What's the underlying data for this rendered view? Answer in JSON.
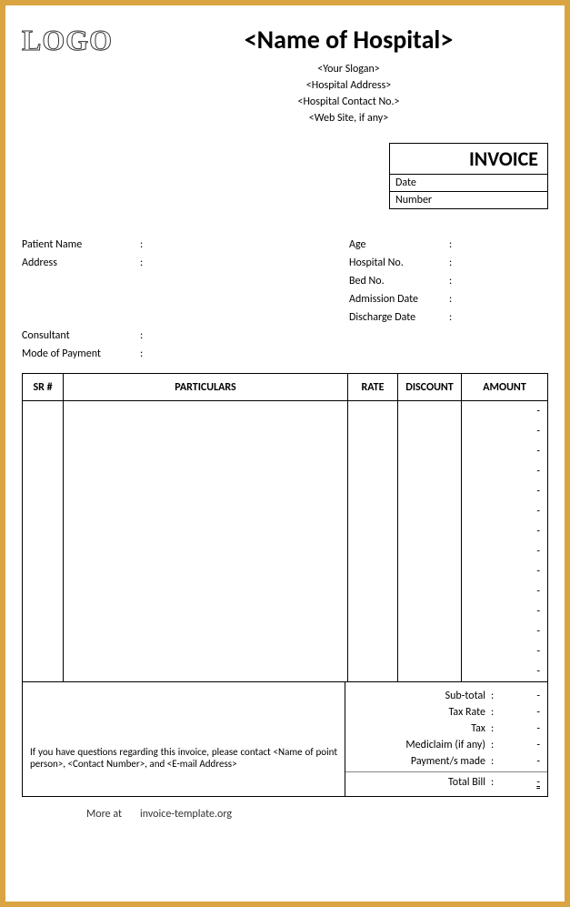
{
  "logo_text": "LOGO",
  "hospital_name": "<Name of Hospital>",
  "slogan": "<Your Slogan>",
  "address": "<Hospital Address>",
  "contact_no": "<Hospital Contact No.>",
  "website": "<Web Site, if any>",
  "invoice_box": {
    "title": "INVOICE",
    "date_label": "Date",
    "number_label": "Number"
  },
  "patient_info_left": [
    {
      "label": "Patient Name"
    },
    {
      "label": "Address"
    },
    {
      "label": ""
    },
    {
      "label": ""
    },
    {
      "label": ""
    },
    {
      "label": "Consultant"
    },
    {
      "label": "Mode of Payment"
    }
  ],
  "patient_info_right": [
    {
      "label": "Age"
    },
    {
      "label": "Hospital No."
    },
    {
      "label": "Bed No."
    },
    {
      "label": "Admission Date"
    },
    {
      "label": "Discharge Date"
    }
  ],
  "table": {
    "headers": [
      "SR #",
      "PARTICULARS",
      "RATE",
      "DISCOUNT",
      "AMOUNT"
    ],
    "dash_rows": 14,
    "dash": "-"
  },
  "contact_text": "If you have questions regarding this invoice, please contact <Name of point person>, <Contact Number>, and <E-mail Address>",
  "summary": [
    {
      "label": "Sub-total",
      "value": "-"
    },
    {
      "label": "Tax Rate",
      "value": "-"
    },
    {
      "label": "Tax",
      "value": "-"
    },
    {
      "label": "Mediclaim (if any)",
      "value": "-"
    },
    {
      "label": "Payment/s made",
      "value": "-"
    }
  ],
  "total_bill": {
    "label": "Total Bill",
    "value": "-"
  },
  "footer": {
    "more": "More at",
    "site": "invoice-template.org"
  },
  "colors": {
    "border": "#d9a441",
    "page_bg": "#ffffff",
    "text": "#000000"
  }
}
